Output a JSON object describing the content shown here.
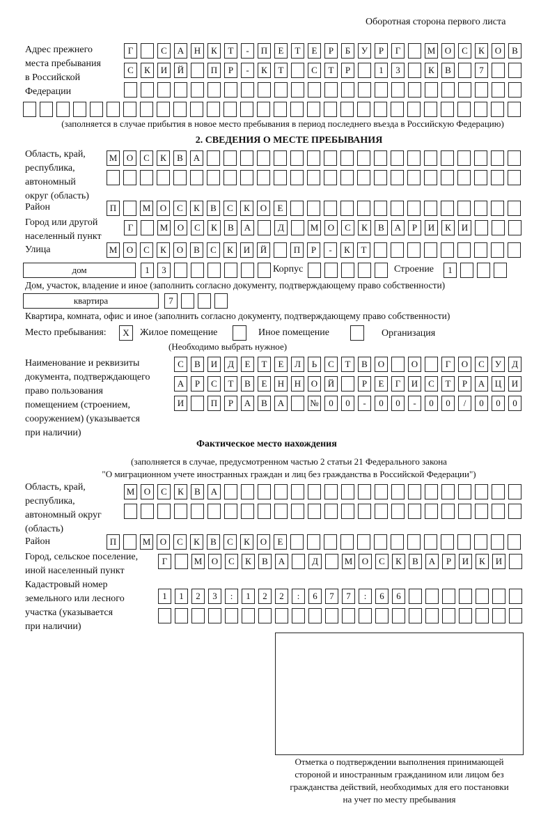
{
  "header": "Оборотная сторона первого листа",
  "prev_address": {
    "label": "Адрес прежнего\nместа пребывания\nв Российской\nФедерации",
    "rows": [
      [
        "Г",
        "",
        "С",
        "А",
        "Н",
        "К",
        "Т",
        "-",
        "П",
        "Е",
        "Т",
        "Е",
        "Р",
        "Б",
        "У",
        "Р",
        "Г",
        "",
        "М",
        "О",
        "С",
        "К",
        "О",
        "В"
      ],
      [
        "С",
        "К",
        "И",
        "Й",
        "",
        "П",
        "Р",
        "-",
        "К",
        "Т",
        "",
        "С",
        "Т",
        "Р",
        "",
        "1",
        "3",
        "",
        "К",
        "В",
        "",
        "7",
        "",
        ""
      ],
      [
        "",
        "",
        "",
        "",
        "",
        "",
        "",
        "",
        "",
        "",
        "",
        "",
        "",
        "",
        "",
        "",
        "",
        "",
        "",
        "",
        "",
        "",
        "",
        ""
      ],
      [
        "",
        "",
        "",
        "",
        "",
        "",
        "",
        "",
        "",
        "",
        "",
        "",
        "",
        "",
        "",
        "",
        "",
        "",
        "",
        "",
        "",
        "",
        "",
        "",
        "",
        "",
        "",
        "",
        "",
        ""
      ]
    ],
    "note": "(заполняется в случае прибытия в новое место пребывания в период последнего въезда в Российскую Федерацию)"
  },
  "section2": {
    "title": "2. СВЕДЕНИЯ О МЕСТЕ ПРЕБЫВАНИЯ",
    "region_label": "Область, край,\nреспублика,\nавтономный\nокруг (область)",
    "region_rows": [
      [
        "М",
        "О",
        "С",
        "К",
        "В",
        "А",
        "",
        "",
        "",
        "",
        "",
        "",
        "",
        "",
        "",
        "",
        "",
        "",
        "",
        "",
        "",
        "",
        "",
        "",
        ""
      ],
      [
        "",
        "",
        "",
        "",
        "",
        "",
        "",
        "",
        "",
        "",
        "",
        "",
        "",
        "",
        "",
        "",
        "",
        "",
        "",
        "",
        "",
        "",
        "",
        "",
        ""
      ]
    ],
    "district_label": "Район",
    "district": [
      "П",
      "",
      "М",
      "О",
      "С",
      "К",
      "В",
      "С",
      "К",
      "О",
      "Е",
      "",
      "",
      "",
      "",
      "",
      "",
      "",
      "",
      "",
      "",
      "",
      "",
      "",
      ""
    ],
    "city_label": "Город или другой\nнаселенный пункт",
    "city": [
      "Г",
      "",
      "М",
      "О",
      "С",
      "К",
      "В",
      "А",
      "",
      "Д",
      "",
      "М",
      "О",
      "С",
      "К",
      "В",
      "А",
      "Р",
      "И",
      "К",
      "И",
      "",
      "",
      ""
    ],
    "street_label": "Улица",
    "street": [
      "М",
      "О",
      "С",
      "К",
      "О",
      "В",
      "С",
      "К",
      "И",
      "Й",
      "",
      "П",
      "Р",
      "-",
      "К",
      "Т",
      "",
      "",
      "",
      "",
      "",
      "",
      "",
      "",
      ""
    ],
    "house_type": "дом",
    "house": [
      "1",
      "3",
      "",
      "",
      "",
      "",
      "",
      ""
    ],
    "korpus_label": "Корпус",
    "korpus": [
      "",
      "",
      "",
      "",
      ""
    ],
    "building_label": "Строение",
    "building": [
      "1",
      "",
      "",
      ""
    ],
    "house_note": "Дом, участок, владение и иное (заполнить согласно документу, подтверждающему право собственности)",
    "apt_type": "квартира",
    "apt": [
      "7",
      "",
      "",
      ""
    ],
    "apt_note": "Квартира, комната, офис и иное (заполнить согласно документу, подтверждающему право собственности)",
    "stay_label": "Место пребывания:",
    "stay_options": [
      {
        "label": "Жилое помещение",
        "mark": "X"
      },
      {
        "label": "Иное помещение",
        "mark": ""
      },
      {
        "label": "Организация",
        "mark": ""
      }
    ],
    "stay_note": "(Необходимо выбрать нужное)",
    "doc_label": "Наименование и реквизиты\nдокумента, подтверждающего\nправо пользования\nпомещением (строением,\nсооружением) (указывается\nпри наличии)",
    "doc_rows": [
      [
        "С",
        "В",
        "И",
        "Д",
        "Е",
        "Т",
        "Е",
        "Л",
        "Ь",
        "С",
        "Т",
        "В",
        "О",
        "",
        "О",
        "",
        "Г",
        "О",
        "С",
        "У",
        "Д"
      ],
      [
        "А",
        "Р",
        "С",
        "Т",
        "В",
        "Е",
        "Н",
        "Н",
        "О",
        "Й",
        "",
        "Р",
        "Е",
        "Г",
        "И",
        "С",
        "Т",
        "Р",
        "А",
        "Ц",
        "И"
      ],
      [
        "И",
        "",
        "П",
        "Р",
        "А",
        "В",
        "А",
        "",
        "№",
        "0",
        "0",
        "-",
        "0",
        "0",
        "-",
        "0",
        "0",
        "/",
        "0",
        "0",
        "0"
      ]
    ]
  },
  "actual": {
    "title": "Фактическое место нахождения",
    "note1": "(заполняется в случае, предусмотренном частью 2 статьи 21 Федерального закона",
    "note2": "\"О миграционном учете иностранных граждан и лиц без гражданства в Российской Федерации\")",
    "region_label": "Область, край,\nреспублика,\nавтономный округ\n(область)",
    "region_rows": [
      [
        "М",
        "О",
        "С",
        "К",
        "В",
        "А",
        "",
        "",
        "",
        "",
        "",
        "",
        "",
        "",
        "",
        "",
        "",
        "",
        "",
        "",
        "",
        "",
        "",
        ""
      ],
      [
        "",
        "",
        "",
        "",
        "",
        "",
        "",
        "",
        "",
        "",
        "",
        "",
        "",
        "",
        "",
        "",
        "",
        "",
        "",
        "",
        "",
        "",
        "",
        ""
      ]
    ],
    "district_label": "Район",
    "district": [
      "П",
      "",
      "М",
      "О",
      "С",
      "К",
      "В",
      "С",
      "К",
      "О",
      "Е",
      "",
      "",
      "",
      "",
      "",
      "",
      "",
      "",
      "",
      "",
      "",
      "",
      "",
      ""
    ],
    "city_label": "Город, сельское поселение,\nиной населенный пункт",
    "city": [
      "Г",
      "",
      "М",
      "О",
      "С",
      "К",
      "В",
      "А",
      "",
      "Д",
      "",
      "М",
      "О",
      "С",
      "К",
      "В",
      "А",
      "Р",
      "И",
      "К",
      "И",
      ""
    ],
    "cadastral_label": "Кадастровый номер\nземельного или лесного\nучастка (указывается\nпри наличии)",
    "cadastral_rows": [
      [
        "1",
        "1",
        "2",
        "3",
        ":",
        "1",
        "2",
        "2",
        ":",
        "6",
        "7",
        "7",
        ":",
        "6",
        "6",
        "",
        "",
        "",
        "",
        "",
        "",
        ""
      ],
      [
        "",
        "",
        "",
        "",
        "",
        "",
        "",
        "",
        "",
        "",
        "",
        "",
        "",
        "",
        "",
        "",
        "",
        "",
        "",
        "",
        "",
        ""
      ]
    ]
  },
  "stamp_caption": "Отметка о подтверждении выполнения принимающей\nстороной и иностранным гражданином или лицом без\nгражданства действий, необходимых для его постановки\nна учет по месту пребывания"
}
